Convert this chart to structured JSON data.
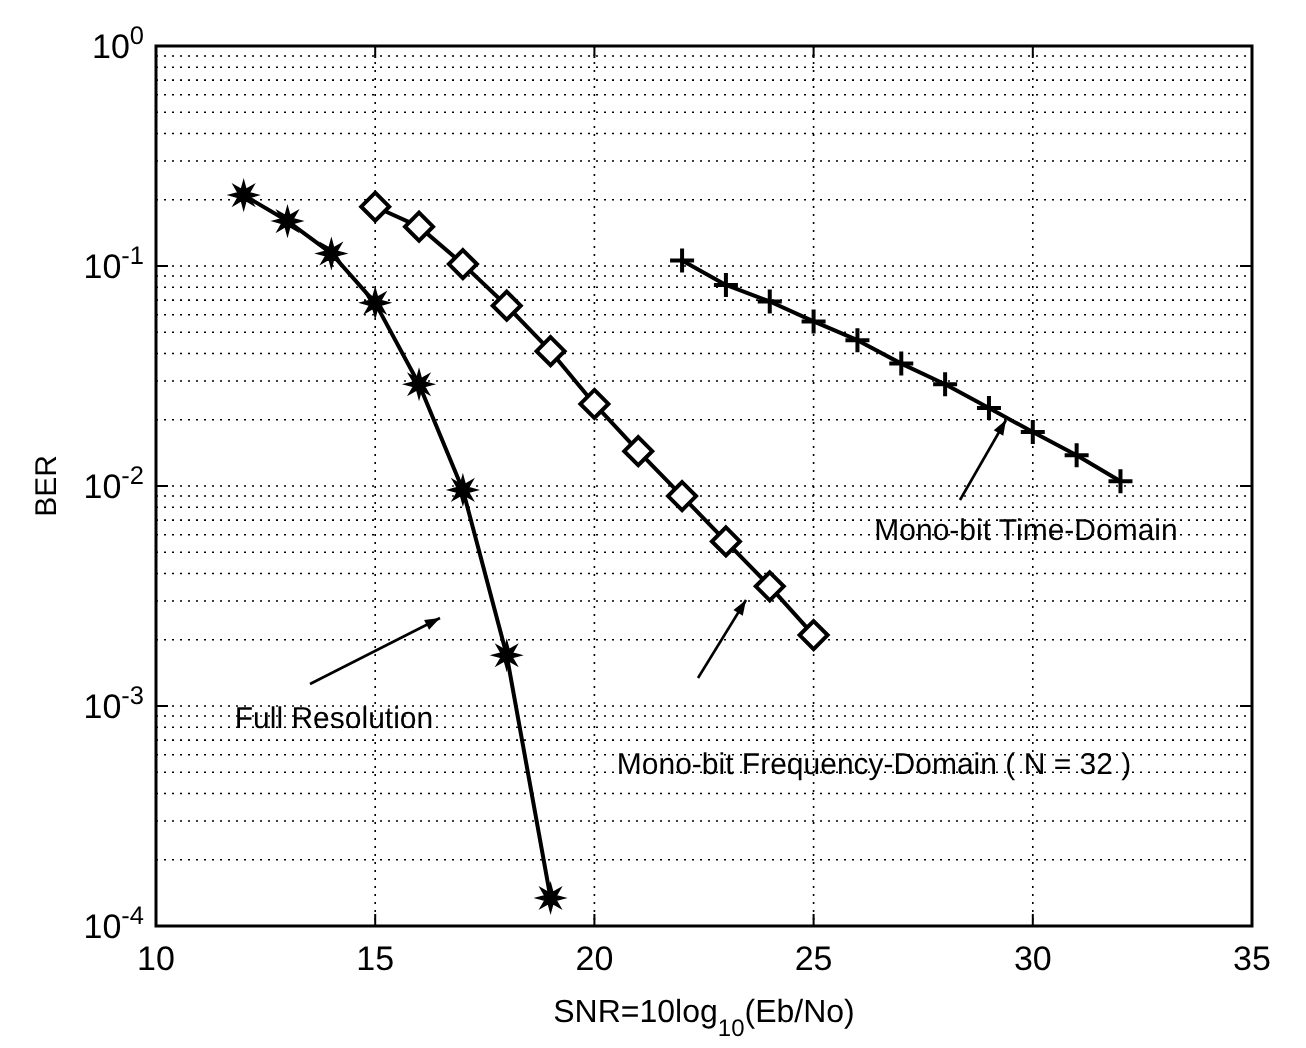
{
  "chart_data": {
    "type": "line",
    "xlabel": "SNR=10log$_{10}$(Eb/No)",
    "ylabel": "BER",
    "log": "y",
    "grid": true,
    "line_style": "solid",
    "xlim": [
      10,
      35
    ],
    "xticks": [
      10,
      15,
      20,
      25,
      30,
      35
    ],
    "ylim": [
      0.0001,
      1
    ],
    "yticks": [
      {
        "value": 0.0001,
        "label": "10$^{-4}$"
      },
      {
        "value": 0.001,
        "label": "10$^{-3}$"
      },
      {
        "value": 0.01,
        "label": "10$^{-2}$"
      },
      {
        "value": 0.1,
        "label": "10$^{-1}$"
      },
      {
        "value": 1,
        "label": "10$^{0}$"
      }
    ],
    "series": [
      {
        "color": "#000000",
        "marker": "star",
        "x": [
          12,
          13,
          14,
          15,
          16,
          17,
          18,
          19
        ],
        "values": [
          0.21,
          0.16,
          0.114,
          0.068,
          0.029,
          0.0096,
          0.0017,
          0.000134
        ]
      },
      {
        "color": "#000000",
        "marker": "diamond",
        "x": [
          15,
          16,
          17,
          18,
          19,
          20,
          21,
          22,
          23,
          24,
          25
        ],
        "values": [
          0.186,
          0.151,
          0.102,
          0.066,
          0.041,
          0.0236,
          0.0144,
          0.009,
          0.0056,
          0.0035,
          0.0021
        ]
      },
      {
        "color": "#000000",
        "marker": "cross",
        "x": [
          22,
          23,
          24,
          25,
          26,
          27,
          28,
          29,
          30,
          31,
          32
        ],
        "values": [
          0.106,
          0.082,
          0.069,
          0.056,
          0.046,
          0.036,
          0.029,
          0.0226,
          0.0176,
          0.0138,
          0.0105
        ]
      }
    ],
    "annotations": [
      "Full Resolution",
      "Mono-bit Frequency-Domain ( N = 32 )",
      "Mono-bit Time-Domain"
    ]
  }
}
